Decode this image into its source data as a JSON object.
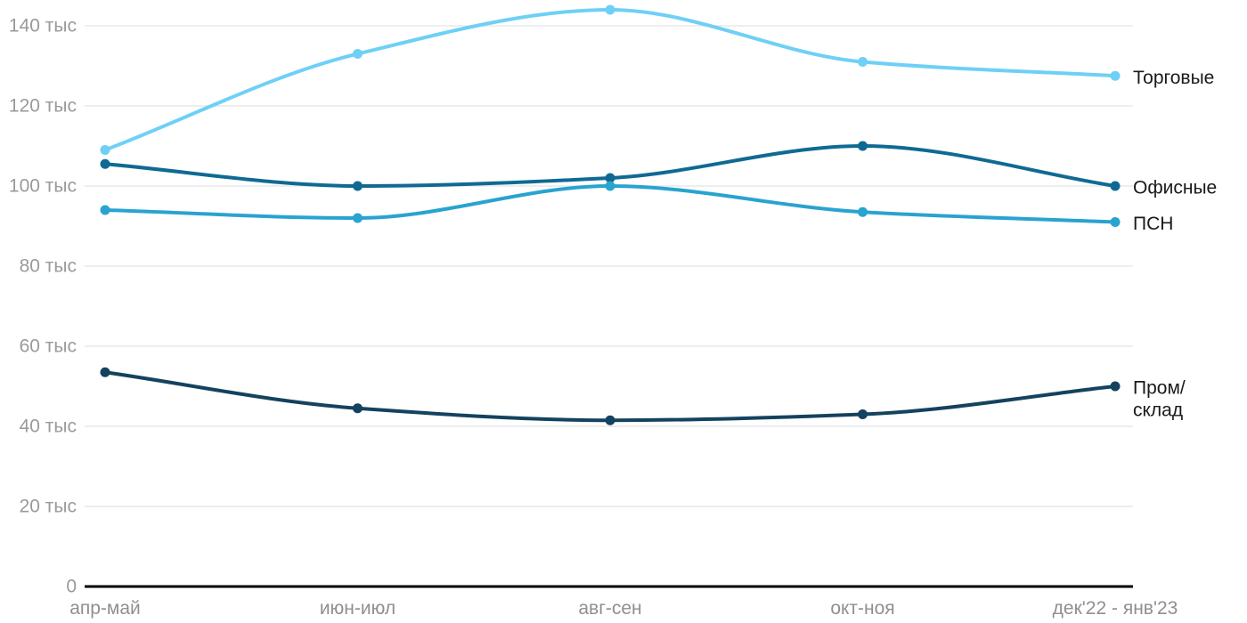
{
  "chart_data": {
    "type": "line",
    "title": "",
    "xlabel": "",
    "ylabel": "",
    "unit": "тыс",
    "grid": true,
    "legend_position": "right-of-line-ends",
    "ylim": [
      0,
      146.4
    ],
    "categories": [
      "апр-май",
      "июн-июл",
      "авг-сен",
      "окт-ноя",
      "дек'22 - янв'23"
    ],
    "y_ticks": [
      {
        "value": 0,
        "label": "0"
      },
      {
        "value": 20,
        "label": "20 тыс"
      },
      {
        "value": 40,
        "label": "40 тыс"
      },
      {
        "value": 60,
        "label": "60 тыс"
      },
      {
        "value": 80,
        "label": "80 тыс"
      },
      {
        "value": 100,
        "label": "100 тыс"
      },
      {
        "value": 120,
        "label": "120 тыс"
      },
      {
        "value": 140,
        "label": "140 тыс"
      }
    ],
    "series": [
      {
        "id": "torgovye",
        "name": "Торговые",
        "label_lines": [
          "Торговые"
        ],
        "color": "#6ed0f6",
        "values": [
          109,
          133,
          144,
          131,
          127.5
        ]
      },
      {
        "id": "ofisnye",
        "name": "Офисные",
        "label_lines": [
          "Офисные"
        ],
        "color": "#0f6a93",
        "values": [
          105.5,
          100,
          102,
          110,
          100
        ]
      },
      {
        "id": "psn",
        "name": "ПСН",
        "label_lines": [
          "ПСН"
        ],
        "color": "#29a3cf",
        "values": [
          94,
          92,
          100,
          93.5,
          91
        ]
      },
      {
        "id": "prom-sklad",
        "name": "Пром/склад",
        "label_lines": [
          "Пром/",
          "склад"
        ],
        "color": "#14425f",
        "values": [
          53.5,
          44.5,
          41.5,
          43,
          50
        ]
      }
    ]
  },
  "colors": {
    "background": "#ffffff",
    "grid": "#e8e8e8",
    "axis": "#000000",
    "y_tick_text": "#9a9a9a",
    "x_tick_text": "#8f8f8f",
    "series_label_text": "#1a1a1a"
  }
}
